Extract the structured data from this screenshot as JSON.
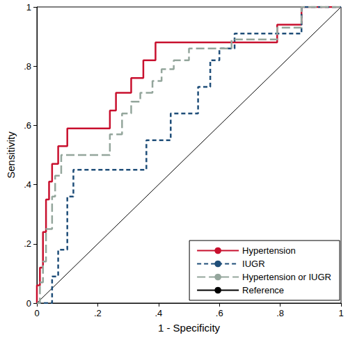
{
  "chart_data": {
    "type": "line",
    "x_label": "1 - Specificity",
    "y_label": "Sensitivity",
    "xlim": [
      0,
      1
    ],
    "ylim": [
      0,
      1
    ],
    "xticks": [
      0,
      {
        "value": 0.2,
        "label": ".2"
      },
      {
        "value": 0.4,
        "label": ".4"
      },
      {
        "value": 0.6,
        "label": ".6"
      },
      {
        "value": 0.8,
        "label": ".8"
      },
      1
    ],
    "yticks": [
      0,
      {
        "value": 0.2,
        "label": ".2"
      },
      {
        "value": 0.4,
        "label": ".4"
      },
      {
        "value": 0.6,
        "label": ".6"
      },
      {
        "value": 0.8,
        "label": ".8"
      },
      1
    ],
    "grid": false,
    "legend": "bottom right",
    "series": [
      {
        "name": "Hypertension",
        "color": "#c8102e",
        "line_style": "solid",
        "x": [
          0,
          0,
          0.01,
          0.01,
          0.02,
          0.02,
          0.03,
          0.03,
          0.04,
          0.04,
          0.05,
          0.05,
          0.07,
          0.07,
          0.1,
          0.1,
          0.24,
          0.24,
          0.26,
          0.26,
          0.31,
          0.31,
          0.35,
          0.35,
          0.39,
          0.39,
          0.79,
          0.79,
          0.87,
          0.87,
          1
        ],
        "values": [
          0,
          0.06,
          0.06,
          0.12,
          0.12,
          0.24,
          0.24,
          0.35,
          0.35,
          0.41,
          0.41,
          0.47,
          0.47,
          0.53,
          0.53,
          0.59,
          0.59,
          0.65,
          0.65,
          0.71,
          0.71,
          0.76,
          0.76,
          0.82,
          0.82,
          0.88,
          0.88,
          0.94,
          0.94,
          1,
          1
        ]
      },
      {
        "name": "IUGR",
        "color": "#1f4e79",
        "line_style": "dashed",
        "x": [
          0,
          0.05,
          0.05,
          0.07,
          0.07,
          0.1,
          0.1,
          0.12,
          0.12,
          0.36,
          0.36,
          0.44,
          0.44,
          0.53,
          0.53,
          0.57,
          0.57,
          0.6,
          0.6,
          0.65,
          0.65,
          0.87,
          0.87,
          1
        ],
        "values": [
          0,
          0,
          0.09,
          0.09,
          0.18,
          0.18,
          0.36,
          0.36,
          0.45,
          0.45,
          0.55,
          0.55,
          0.64,
          0.64,
          0.73,
          0.73,
          0.82,
          0.82,
          0.86,
          0.86,
          0.91,
          0.91,
          1,
          1
        ]
      },
      {
        "name": "Hypertension or IUGR",
        "color": "#94a69c",
        "line_style": "longdash",
        "x": [
          0,
          0.01,
          0.01,
          0.02,
          0.02,
          0.03,
          0.03,
          0.05,
          0.05,
          0.06,
          0.06,
          0.08,
          0.08,
          0.24,
          0.24,
          0.28,
          0.28,
          0.31,
          0.31,
          0.34,
          0.34,
          0.38,
          0.38,
          0.41,
          0.41,
          0.45,
          0.45,
          0.5,
          0.5,
          0.64,
          0.64,
          0.79,
          0.79,
          0.87,
          0.87,
          1
        ],
        "values": [
          0,
          0,
          0.07,
          0.07,
          0.14,
          0.14,
          0.25,
          0.25,
          0.36,
          0.36,
          0.43,
          0.43,
          0.5,
          0.5,
          0.57,
          0.57,
          0.64,
          0.64,
          0.68,
          0.68,
          0.71,
          0.71,
          0.75,
          0.75,
          0.79,
          0.79,
          0.82,
          0.82,
          0.86,
          0.86,
          0.89,
          0.89,
          0.93,
          0.93,
          1,
          1
        ]
      },
      {
        "name": "Reference",
        "color": "#000000",
        "line_style": "thin",
        "x": [
          0,
          1
        ],
        "values": [
          0,
          1
        ]
      }
    ]
  }
}
